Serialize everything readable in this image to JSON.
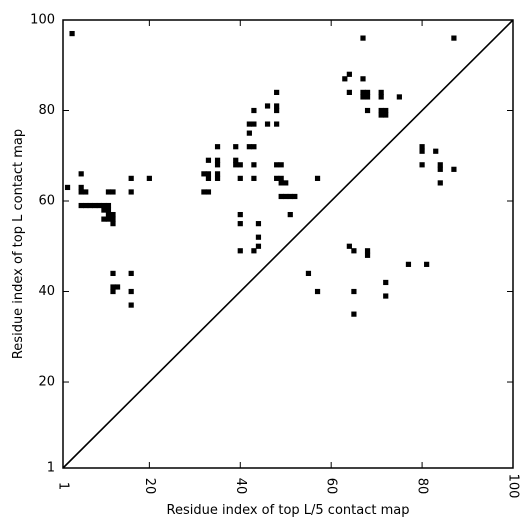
{
  "chart_data": {
    "type": "scatter",
    "title": "",
    "xlabel": "Residue index of top L/5 contact map",
    "ylabel": "Residue index of top L contact map",
    "xlim": [
      1,
      100
    ],
    "ylim": [
      1,
      100
    ],
    "x_ticks": [
      "1",
      "20",
      "40",
      "60",
      "80",
      "100"
    ],
    "x_tick_values": [
      1,
      20,
      40,
      60,
      80,
      100
    ],
    "y_ticks": [
      "1",
      "20",
      "40",
      "60",
      "80",
      "100"
    ],
    "y_tick_values": [
      1,
      20,
      40,
      60,
      80,
      100
    ],
    "grid": false,
    "diagonal": true,
    "marker": "square",
    "color": "#000000",
    "points": [
      [
        3,
        97
      ],
      [
        67,
        96
      ],
      [
        87,
        96
      ],
      [
        64,
        88
      ],
      [
        63,
        87
      ],
      [
        67,
        87
      ],
      [
        48,
        84
      ],
      [
        64,
        84
      ],
      [
        67,
        84
      ],
      [
        68,
        84
      ],
      [
        71,
        84
      ],
      [
        67,
        83
      ],
      [
        68,
        83
      ],
      [
        71,
        83
      ],
      [
        75,
        83
      ],
      [
        46,
        81
      ],
      [
        48,
        81
      ],
      [
        48,
        80
      ],
      [
        43,
        80
      ],
      [
        68,
        80
      ],
      [
        71,
        80
      ],
      [
        72,
        80
      ],
      [
        71,
        79
      ],
      [
        72,
        79
      ],
      [
        42,
        77
      ],
      [
        43,
        77
      ],
      [
        46,
        77
      ],
      [
        48,
        77
      ],
      [
        42,
        75
      ],
      [
        35,
        72
      ],
      [
        39,
        72
      ],
      [
        42,
        72
      ],
      [
        43,
        72
      ],
      [
        80,
        72
      ],
      [
        80,
        71
      ],
      [
        83,
        71
      ],
      [
        33,
        69
      ],
      [
        35,
        69
      ],
      [
        39,
        69
      ],
      [
        35,
        68
      ],
      [
        39,
        68
      ],
      [
        40,
        68
      ],
      [
        43,
        68
      ],
      [
        48,
        68
      ],
      [
        49,
        68
      ],
      [
        80,
        68
      ],
      [
        84,
        68
      ],
      [
        84,
        67
      ],
      [
        87,
        67
      ],
      [
        5,
        66
      ],
      [
        32,
        66
      ],
      [
        33,
        66
      ],
      [
        35,
        66
      ],
      [
        33,
        65
      ],
      [
        35,
        65
      ],
      [
        16,
        65
      ],
      [
        20,
        65
      ],
      [
        40,
        65
      ],
      [
        43,
        65
      ],
      [
        48,
        65
      ],
      [
        49,
        65
      ],
      [
        57,
        65
      ],
      [
        49,
        64
      ],
      [
        50,
        64
      ],
      [
        84,
        64
      ],
      [
        2,
        63
      ],
      [
        5,
        63
      ],
      [
        5,
        62
      ],
      [
        6,
        62
      ],
      [
        11,
        62
      ],
      [
        12,
        62
      ],
      [
        16,
        62
      ],
      [
        32,
        62
      ],
      [
        33,
        62
      ],
      [
        49,
        61
      ],
      [
        50,
        61
      ],
      [
        51,
        61
      ],
      [
        52,
        61
      ],
      [
        5,
        59
      ],
      [
        6,
        59
      ],
      [
        7,
        59
      ],
      [
        8,
        59
      ],
      [
        9,
        59
      ],
      [
        10,
        59
      ],
      [
        11,
        59
      ],
      [
        10,
        58
      ],
      [
        11,
        58
      ],
      [
        11,
        57
      ],
      [
        12,
        57
      ],
      [
        10,
        56
      ],
      [
        11,
        56
      ],
      [
        12,
        56
      ],
      [
        12,
        55
      ],
      [
        40,
        57
      ],
      [
        51,
        57
      ],
      [
        40,
        55
      ],
      [
        44,
        55
      ],
      [
        44,
        52
      ],
      [
        44,
        50
      ],
      [
        64,
        50
      ],
      [
        40,
        49
      ],
      [
        43,
        49
      ],
      [
        65,
        49
      ],
      [
        68,
        49
      ],
      [
        68,
        48
      ],
      [
        77,
        46
      ],
      [
        81,
        46
      ],
      [
        55,
        44
      ],
      [
        12,
        44
      ],
      [
        16,
        44
      ],
      [
        72,
        42
      ],
      [
        12,
        41
      ],
      [
        13,
        41
      ],
      [
        12,
        40
      ],
      [
        16,
        40
      ],
      [
        57,
        40
      ],
      [
        65,
        40
      ],
      [
        72,
        39
      ],
      [
        16,
        37
      ],
      [
        65,
        35
      ]
    ]
  }
}
